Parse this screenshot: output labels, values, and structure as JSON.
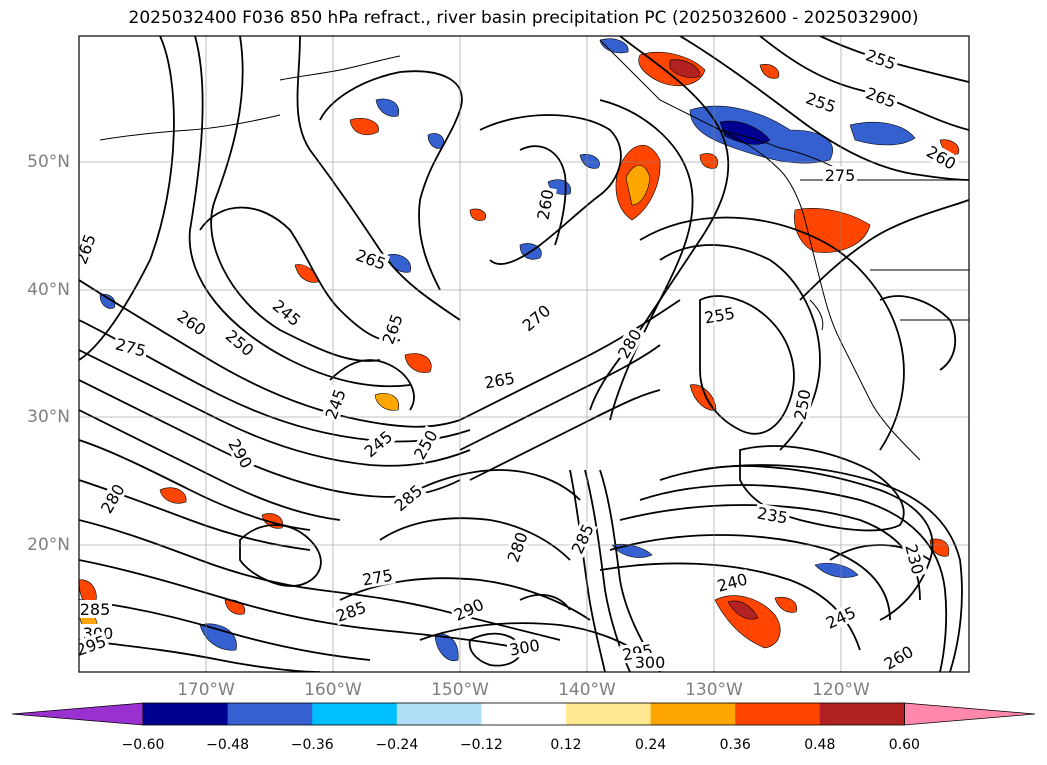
{
  "title": "2025032400 F036 850 hPa refract., river basin precipitation PC (2025032600 - 2025032900)",
  "lat_labels": [
    "50°N",
    "40°N",
    "30°N",
    "20°N"
  ],
  "lon_labels": [
    "170°W",
    "160°W",
    "150°W",
    "140°W",
    "130°W",
    "120°W"
  ],
  "colorbar": {
    "ticks": [
      "−0.60",
      "−0.48",
      "−0.36",
      "−0.24",
      "−0.12",
      "0.12",
      "0.24",
      "0.36",
      "0.48",
      "0.60"
    ],
    "colors": [
      "#9b30d0",
      "#000090",
      "#3560d0",
      "#00bfff",
      "#b0e0f8",
      "#ffffff",
      "#ffe890",
      "#ffa500",
      "#ff4500",
      "#b22222",
      "#ff88aa"
    ]
  },
  "contour_labels": [
    "265",
    "260",
    "255",
    "275",
    "265",
    "260",
    "265",
    "255",
    "245",
    "260",
    "250",
    "275",
    "245",
    "265",
    "270",
    "280",
    "255",
    "265",
    "250",
    "245",
    "250",
    "235",
    "240",
    "245",
    "230",
    "260",
    "280",
    "285",
    "290",
    "300",
    "295",
    "300",
    "285",
    "290",
    "280",
    "275",
    "285",
    "300",
    "295",
    "285"
  ]
}
